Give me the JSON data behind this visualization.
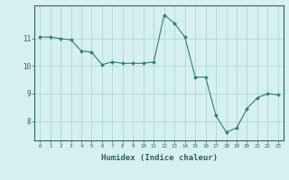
{
  "x": [
    0,
    1,
    2,
    3,
    4,
    5,
    6,
    7,
    8,
    9,
    10,
    11,
    12,
    13,
    14,
    15,
    16,
    17,
    18,
    19,
    20,
    21,
    22,
    23
  ],
  "y": [
    11.05,
    11.05,
    11.0,
    10.95,
    10.55,
    10.5,
    10.05,
    10.15,
    10.1,
    10.1,
    10.1,
    10.15,
    11.85,
    11.55,
    11.05,
    9.6,
    9.6,
    8.2,
    7.6,
    7.75,
    8.45,
    8.85,
    9.0,
    8.95
  ],
  "line_color": "#2e7d6e",
  "marker": "D",
  "marker_size": 2.0,
  "bg_color": "#d6f0ef",
  "grid_color": "#aad8d5",
  "tick_color": "#2e6060",
  "xlabel": "Humidex (Indice chaleur)",
  "xlabel_fontsize": 6.5,
  "ylabel_ticks": [
    8,
    9,
    10,
    11
  ],
  "ylim": [
    7.3,
    12.2
  ],
  "xlim": [
    -0.5,
    23.5
  ]
}
